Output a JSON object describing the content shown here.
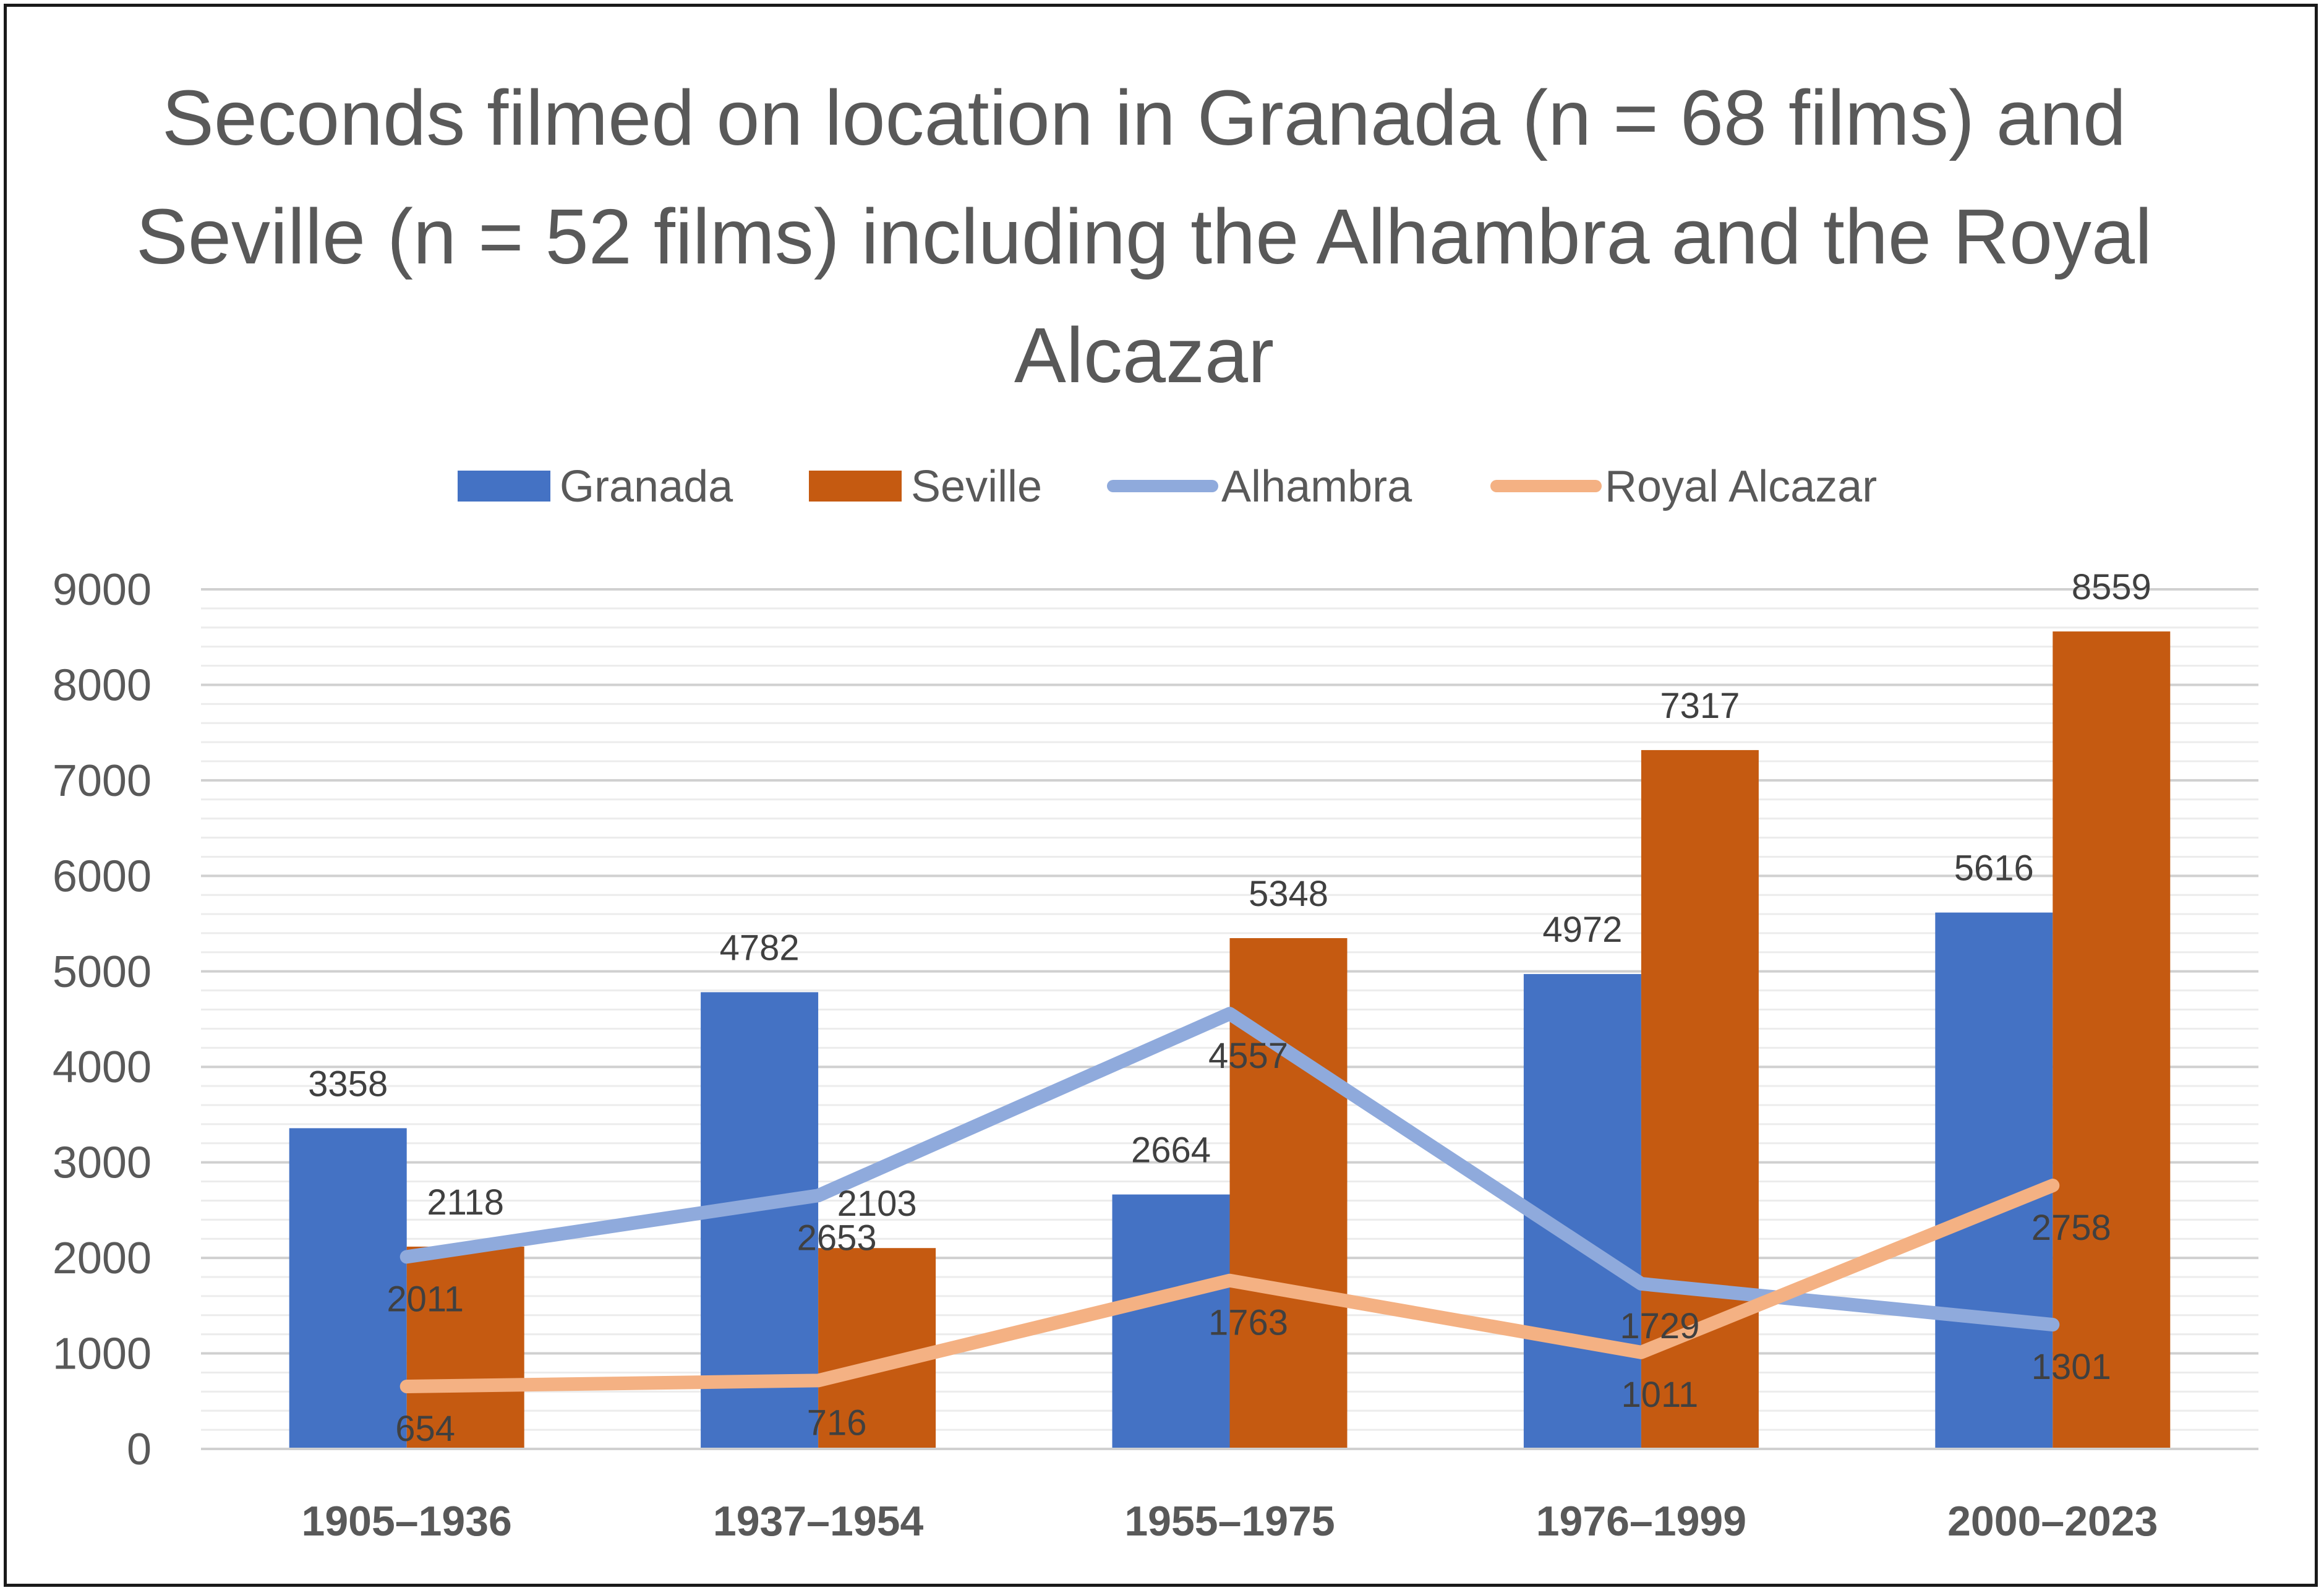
{
  "chart_data": {
    "type": "bar",
    "title": "Seconds filmed on location in Granada (n = 68 films) and Seville (n = 52 films) including the Alhambra and the Royal Alcazar",
    "categories": [
      "1905–1936",
      "1937–1954",
      "1955–1975",
      "1976–1999",
      "2000–2023"
    ],
    "series": [
      {
        "name": "Granada",
        "type": "bar",
        "color": "#4472C4",
        "values": [
          3358,
          4782,
          2664,
          4972,
          5616
        ]
      },
      {
        "name": "Seville",
        "type": "bar",
        "color": "#C55A11",
        "values": [
          2118,
          2103,
          5348,
          7317,
          8559
        ]
      },
      {
        "name": "Alhambra",
        "type": "line",
        "color": "#8FAADC",
        "values": [
          2011,
          2653,
          4557,
          1729,
          1301
        ]
      },
      {
        "name": "Royal Alcazar",
        "type": "line",
        "color": "#F4B183",
        "values": [
          654,
          716,
          1763,
          1011,
          2758
        ]
      }
    ],
    "ylim": [
      0,
      9000
    ],
    "yticks": [
      "0",
      "1000",
      "2000",
      "3000",
      "4000",
      "5000",
      "6000",
      "7000",
      "8000",
      "9000"
    ],
    "grid": true,
    "legend_position": "top"
  }
}
